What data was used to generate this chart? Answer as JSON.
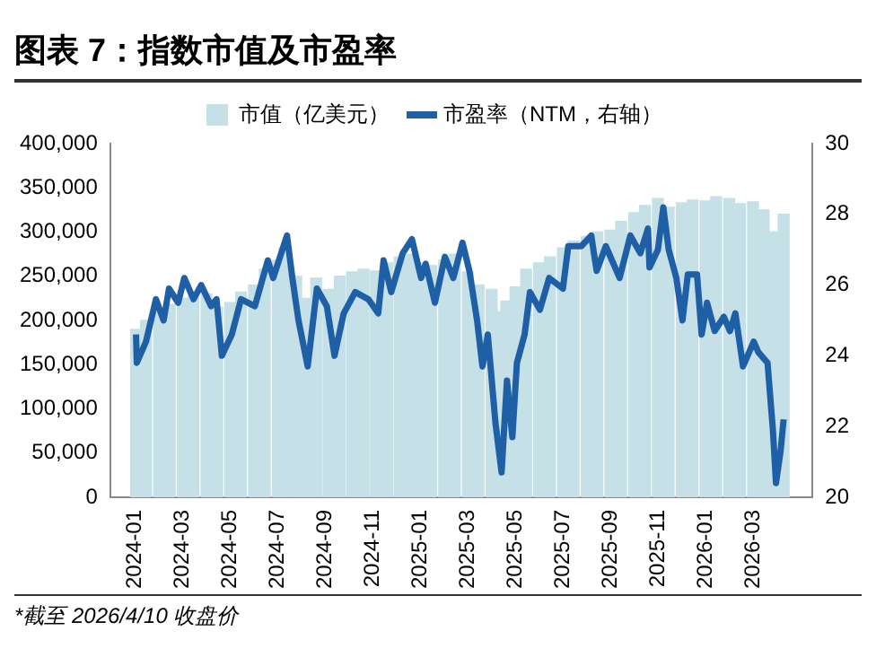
{
  "chart_data": {
    "type": "bar",
    "title": "图表 7：指数市值及市盈率",
    "annotations": [
      "*截至 2026/4/10 收盘价"
    ],
    "xlim": [
      "2024-01",
      "2026-04-15"
    ],
    "xticks": [
      {
        "value": "2024-01",
        "label": "2024-01"
      },
      {
        "value": "2024-03",
        "label": "2024-03"
      },
      {
        "value": "2024-05",
        "label": "2024-05"
      },
      {
        "value": "2024-07",
        "label": "2024-07"
      },
      {
        "value": "2024-09",
        "label": "2024-09"
      },
      {
        "value": "2024-11",
        "label": "2024-11"
      },
      {
        "value": "2025-01",
        "label": "2025-01"
      },
      {
        "value": "2025-03",
        "label": "2025-03"
      },
      {
        "value": "2025-05",
        "label": "2025-05"
      },
      {
        "value": "2025-07",
        "label": "2025-07"
      },
      {
        "value": "2025-09",
        "label": "2025-09"
      },
      {
        "value": "2025-11",
        "label": "2025-11"
      },
      {
        "value": "2026-01",
        "label": "2026-01"
      },
      {
        "value": "2026-03",
        "label": "2026-03"
      }
    ],
    "ylim": [
      0,
      400000
    ],
    "yticks": [
      0,
      {
        "value": 50000,
        "label": "50,000"
      },
      {
        "value": 100000,
        "label": "100,000"
      },
      {
        "value": 150000,
        "label": "150,000"
      },
      {
        "value": 200000,
        "label": "200,000"
      },
      {
        "value": 250000,
        "label": "250,000"
      },
      {
        "value": 300000,
        "label": "300,000"
      },
      {
        "value": 350000,
        "label": "350,000"
      },
      {
        "value": 400000,
        "label": "400,000"
      }
    ],
    "y2lim": [
      20,
      30
    ],
    "y2ticks": [
      20,
      22,
      24,
      26,
      28,
      30
    ],
    "grid": false,
    "legend": "top",
    "series": [
      {
        "name": "市值（亿美元）",
        "color": "#c5e0e6",
        "x": [
          "2024-01-02",
          "2024-01-15",
          "2024-02-01",
          "2024-02-15",
          "2024-03-01",
          "2024-03-15",
          "2024-04-01",
          "2024-04-15",
          "2024-05-01",
          "2024-05-15",
          "2024-06-01",
          "2024-06-15",
          "2024-07-01",
          "2024-07-10",
          "2024-07-25",
          "2024-08-07",
          "2024-08-20",
          "2024-09-05",
          "2024-09-20",
          "2024-10-05",
          "2024-10-20",
          "2024-11-05",
          "2024-11-20",
          "2024-12-05",
          "2024-12-18",
          "2025-01-02",
          "2025-01-15",
          "2025-02-01",
          "2025-02-15",
          "2025-03-01",
          "2025-03-15",
          "2025-04-01",
          "2025-04-08",
          "2025-04-20",
          "2025-05-01",
          "2025-05-15",
          "2025-06-01",
          "2025-06-15",
          "2025-07-01",
          "2025-07-15",
          "2025-08-01",
          "2025-08-15",
          "2025-09-01",
          "2025-09-15",
          "2025-10-01",
          "2025-10-15",
          "2025-11-01",
          "2025-11-15",
          "2025-12-01",
          "2025-12-15",
          "2026-01-01",
          "2026-01-15",
          "2026-02-01",
          "2026-02-15",
          "2026-03-01",
          "2026-03-15",
          "2026-03-27",
          "2026-04-10"
        ],
        "values": [
          190000,
          200000,
          210000,
          218000,
          225000,
          228000,
          230000,
          215000,
          220000,
          232000,
          240000,
          258000,
          268000,
          282000,
          250000,
          225000,
          248000,
          235000,
          250000,
          255000,
          258000,
          256000,
          265000,
          272000,
          275000,
          265000,
          262000,
          268000,
          275000,
          255000,
          240000,
          235000,
          210000,
          222000,
          238000,
          258000,
          265000,
          272000,
          282000,
          290000,
          295000,
          300000,
          302000,
          312000,
          322000,
          330000,
          338000,
          328000,
          333000,
          336000,
          335000,
          340000,
          338000,
          332000,
          334000,
          325000,
          300000,
          320000
        ]
      },
      {
        "name": "市盈率（NTM，右轴）",
        "type": "line",
        "axis": "y2",
        "color": "#1f5fa6",
        "x": [
          "2024-01-02",
          "2024-01-03",
          "2024-01-15",
          "2024-01-28",
          "2024-02-07",
          "2024-02-14",
          "2024-02-26",
          "2024-03-03",
          "2024-03-15",
          "2024-03-25",
          "2024-04-07",
          "2024-04-14",
          "2024-04-21",
          "2024-05-03",
          "2024-05-15",
          "2024-06-02",
          "2024-06-19",
          "2024-06-26",
          "2024-07-13",
          "2024-07-20",
          "2024-07-28",
          "2024-08-09",
          "2024-08-21",
          "2024-09-03",
          "2024-09-13",
          "2024-09-25",
          "2024-10-09",
          "2024-10-26",
          "2024-11-08",
          "2024-11-15",
          "2024-11-25",
          "2024-12-09",
          "2024-12-21",
          "2025-01-02",
          "2025-01-08",
          "2025-01-20",
          "2025-02-02",
          "2025-02-13",
          "2025-02-25",
          "2025-03-03",
          "2025-03-13",
          "2025-03-20",
          "2025-03-27",
          "2025-04-06",
          "2025-04-14",
          "2025-04-21",
          "2025-04-28",
          "2025-05-03",
          "2025-05-13",
          "2025-05-20",
          "2025-06-02",
          "2025-06-14",
          "2025-07-01",
          "2025-07-08",
          "2025-07-25",
          "2025-08-07",
          "2025-08-14",
          "2025-08-26",
          "2025-09-03",
          "2025-09-13",
          "2025-09-27",
          "2025-10-09",
          "2025-10-19",
          "2025-10-21",
          "2025-11-01",
          "2025-11-08",
          "2025-11-15",
          "2025-11-25",
          "2025-12-02",
          "2025-12-09",
          "2025-12-21",
          "2025-12-27",
          "2026-01-03",
          "2026-01-13",
          "2026-01-25",
          "2026-02-02",
          "2026-02-09",
          "2026-02-19",
          "2026-03-02",
          "2026-03-08",
          "2026-03-20",
          "2026-03-27",
          "2026-03-31",
          "2026-04-06",
          "2026-04-10"
        ],
        "values": [
          24.6,
          23.8,
          24.4,
          25.6,
          25.0,
          25.9,
          25.5,
          26.2,
          25.6,
          26.0,
          25.4,
          25.6,
          24.0,
          24.6,
          25.6,
          25.4,
          26.7,
          26.2,
          27.4,
          26.2,
          25.0,
          23.7,
          25.9,
          25.4,
          24.0,
          25.2,
          25.8,
          25.6,
          25.2,
          26.7,
          25.8,
          26.9,
          27.3,
          26.2,
          26.6,
          25.5,
          26.8,
          26.2,
          27.2,
          26.4,
          25.0,
          23.7,
          24.6,
          22.1,
          20.7,
          23.3,
          21.7,
          23.8,
          24.6,
          25.8,
          25.3,
          26.2,
          25.9,
          27.1,
          27.1,
          27.4,
          26.4,
          27.1,
          26.7,
          26.2,
          27.4,
          26.9,
          27.6,
          26.5,
          27.0,
          28.2,
          27.0,
          26.2,
          25.0,
          26.3,
          26.3,
          24.6,
          25.5,
          24.7,
          25.1,
          24.7,
          25.2,
          23.7,
          24.4,
          24.1,
          23.8,
          21.9,
          20.4,
          21.3,
          22.2
        ]
      }
    ]
  }
}
